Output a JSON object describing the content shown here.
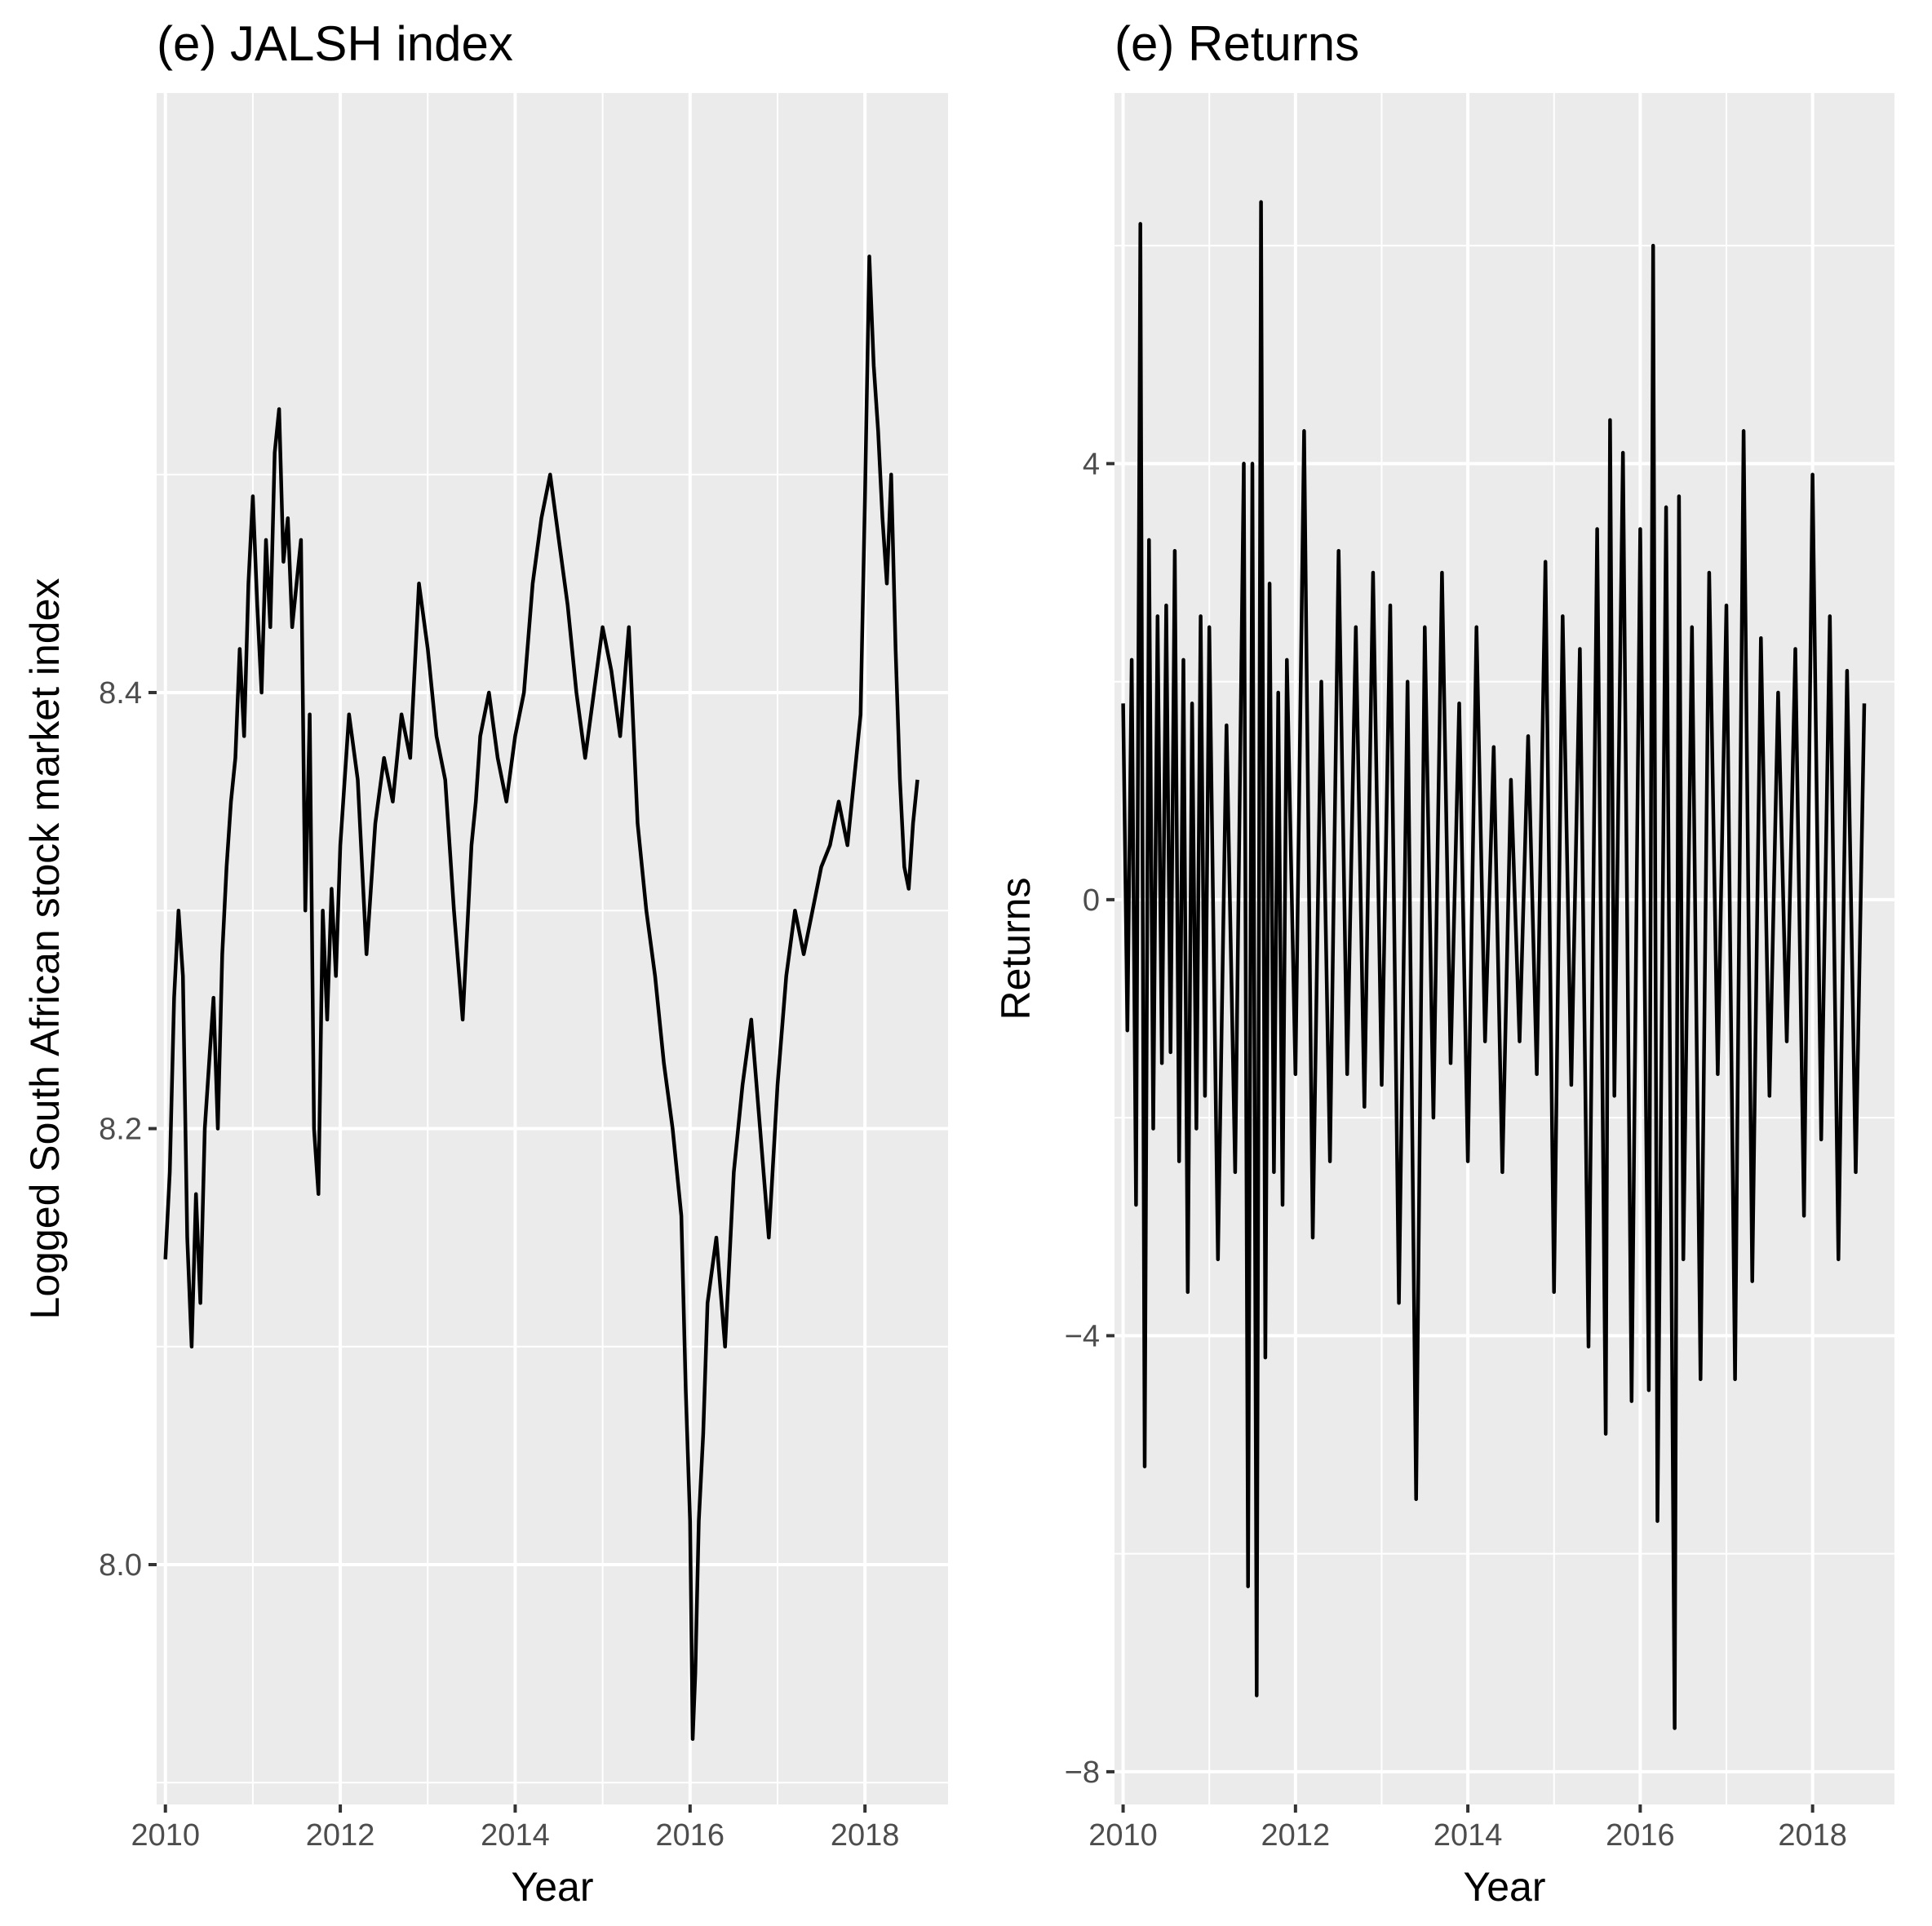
{
  "chart_data": [
    {
      "type": "line",
      "title": "(e) JALSH index",
      "xlabel": "Year",
      "ylabel": "Logged South African stock market index",
      "xlim": [
        2009.9,
        2018.95
      ],
      "ylim": [
        7.89,
        8.675
      ],
      "x_ticks": [
        2010,
        2012,
        2014,
        2016,
        2018
      ],
      "x_tick_labels": [
        "2010",
        "2012",
        "2014",
        "2016",
        "2018"
      ],
      "y_ticks": [
        8.0,
        8.2,
        8.4
      ],
      "y_tick_labels": [
        "8.0",
        "8.2",
        "8.4"
      ],
      "grid": true,
      "legend": "none",
      "series": [
        {
          "x": [
            2010.0,
            2010.05,
            2010.1,
            2010.15,
            2010.2,
            2010.25,
            2010.3,
            2010.35,
            2010.4,
            2010.45,
            2010.5,
            2010.55,
            2010.6,
            2010.65,
            2010.7,
            2010.75,
            2010.8,
            2010.85,
            2010.9,
            2010.95,
            2011.0,
            2011.05,
            2011.1,
            2011.15,
            2011.2,
            2011.25,
            2011.3,
            2011.35,
            2011.4,
            2011.45,
            2011.5,
            2011.55,
            2011.6,
            2011.65,
            2011.7,
            2011.75,
            2011.8,
            2011.85,
            2011.9,
            2011.95,
            2012.0,
            2012.1,
            2012.2,
            2012.3,
            2012.4,
            2012.5,
            2012.6,
            2012.7,
            2012.8,
            2012.9,
            2013.0,
            2013.1,
            2013.2,
            2013.3,
            2013.4,
            2013.5,
            2013.55,
            2013.6,
            2013.7,
            2013.8,
            2013.9,
            2014.0,
            2014.1,
            2014.2,
            2014.3,
            2014.4,
            2014.5,
            2014.6,
            2014.7,
            2014.8,
            2014.9,
            2015.0,
            2015.1,
            2015.2,
            2015.3,
            2015.4,
            2015.5,
            2015.6,
            2015.7,
            2015.8,
            2015.9,
            2015.95,
            2016.0,
            2016.03,
            2016.06,
            2016.1,
            2016.15,
            2016.2,
            2016.3,
            2016.4,
            2016.5,
            2016.6,
            2016.7,
            2016.8,
            2016.9,
            2017.0,
            2017.1,
            2017.2,
            2017.3,
            2017.4,
            2017.5,
            2017.6,
            2017.7,
            2017.8,
            2017.9,
            2017.95,
            2018.0,
            2018.05,
            2018.1,
            2018.15,
            2018.2,
            2018.25,
            2018.3,
            2018.35,
            2018.4,
            2018.45,
            2018.5,
            2018.55,
            2018.6
          ],
          "y": [
            8.14,
            8.18,
            8.26,
            8.3,
            8.27,
            8.15,
            8.1,
            8.17,
            8.12,
            8.2,
            8.23,
            8.26,
            8.2,
            8.28,
            8.32,
            8.35,
            8.37,
            8.42,
            8.38,
            8.45,
            8.49,
            8.44,
            8.4,
            8.47,
            8.43,
            8.51,
            8.53,
            8.46,
            8.48,
            8.43,
            8.45,
            8.47,
            8.3,
            8.39,
            8.2,
            8.17,
            8.3,
            8.25,
            8.31,
            8.27,
            8.33,
            8.39,
            8.36,
            8.28,
            8.34,
            8.37,
            8.35,
            8.39,
            8.37,
            8.45,
            8.42,
            8.38,
            8.36,
            8.3,
            8.25,
            8.33,
            8.35,
            8.38,
            8.4,
            8.37,
            8.35,
            8.38,
            8.4,
            8.45,
            8.48,
            8.5,
            8.47,
            8.44,
            8.4,
            8.37,
            8.4,
            8.43,
            8.41,
            8.38,
            8.43,
            8.34,
            8.3,
            8.27,
            8.23,
            8.2,
            8.16,
            8.08,
            8.02,
            7.92,
            7.95,
            8.02,
            8.06,
            8.12,
            8.15,
            8.1,
            8.18,
            8.22,
            8.25,
            8.2,
            8.15,
            8.22,
            8.27,
            8.3,
            8.28,
            8.3,
            8.32,
            8.33,
            8.35,
            8.33,
            8.37,
            8.39,
            8.49,
            8.6,
            8.55,
            8.52,
            8.48,
            8.45,
            8.5,
            8.42,
            8.36,
            8.32,
            8.31,
            8.34,
            8.36
          ]
        }
      ]
    },
    {
      "type": "line",
      "title": "(e) Returns",
      "xlabel": "Year",
      "ylabel": "Returns",
      "xlim": [
        2009.9,
        2018.95
      ],
      "ylim": [
        -8.3,
        7.4
      ],
      "x_ticks": [
        2010,
        2012,
        2014,
        2016,
        2018
      ],
      "x_tick_labels": [
        "2010",
        "2012",
        "2014",
        "2016",
        "2018"
      ],
      "y_ticks": [
        -8,
        -4,
        0,
        4
      ],
      "y_tick_labels": [
        "-8",
        "-4",
        "0",
        "4"
      ],
      "grid": true,
      "legend": "none",
      "series": [
        {
          "x": [
            2010.0,
            2010.05,
            2010.1,
            2010.15,
            2010.2,
            2010.25,
            2010.3,
            2010.35,
            2010.4,
            2010.45,
            2010.5,
            2010.55,
            2010.6,
            2010.65,
            2010.7,
            2010.75,
            2010.8,
            2010.85,
            2010.9,
            2010.95,
            2011.0,
            2011.1,
            2011.2,
            2011.3,
            2011.4,
            2011.45,
            2011.5,
            2011.55,
            2011.6,
            2011.65,
            2011.7,
            2011.75,
            2011.8,
            2011.85,
            2011.9,
            2012.0,
            2012.1,
            2012.2,
            2012.3,
            2012.4,
            2012.5,
            2012.6,
            2012.7,
            2012.8,
            2012.9,
            2013.0,
            2013.1,
            2013.2,
            2013.3,
            2013.4,
            2013.5,
            2013.6,
            2013.7,
            2013.8,
            2013.9,
            2014.0,
            2014.1,
            2014.2,
            2014.3,
            2014.4,
            2014.5,
            2014.6,
            2014.7,
            2014.8,
            2014.9,
            2015.0,
            2015.1,
            2015.2,
            2015.3,
            2015.4,
            2015.5,
            2015.6,
            2015.65,
            2015.7,
            2015.8,
            2015.9,
            2016.0,
            2016.1,
            2016.15,
            2016.2,
            2016.3,
            2016.4,
            2016.45,
            2016.5,
            2016.6,
            2016.7,
            2016.8,
            2016.9,
            2017.0,
            2017.1,
            2017.2,
            2017.3,
            2017.4,
            2017.5,
            2017.6,
            2017.7,
            2017.8,
            2017.9,
            2018.0,
            2018.1,
            2018.2,
            2018.3,
            2018.4,
            2018.5,
            2018.6
          ],
          "y": [
            1.8,
            -1.2,
            2.2,
            -2.8,
            6.2,
            -5.2,
            3.3,
            -2.1,
            2.6,
            -1.5,
            2.7,
            -1.4,
            3.2,
            -2.4,
            2.2,
            -3.6,
            1.8,
            -2.1,
            2.6,
            -1.8,
            2.5,
            -3.3,
            1.6,
            -2.5,
            4.0,
            -6.3,
            4.0,
            -7.3,
            6.4,
            -4.2,
            2.9,
            -2.5,
            1.9,
            -2.8,
            2.2,
            -1.6,
            4.3,
            -3.1,
            2.0,
            -2.4,
            3.2,
            -1.6,
            2.5,
            -1.9,
            3.0,
            -1.7,
            2.7,
            -3.7,
            2.0,
            -5.5,
            2.5,
            -2.0,
            3.0,
            -1.5,
            1.8,
            -2.4,
            2.5,
            -1.3,
            1.4,
            -2.5,
            1.1,
            -1.3,
            1.5,
            -1.6,
            3.1,
            -3.6,
            2.6,
            -1.7,
            2.3,
            -4.1,
            3.4,
            -4.9,
            4.4,
            -1.8,
            4.1,
            -4.6,
            3.4,
            -4.5,
            6.0,
            -5.7,
            3.6,
            -7.6,
            3.7,
            -3.3,
            2.5,
            -4.4,
            3.0,
            -1.6,
            2.7,
            -4.4,
            4.3,
            -3.5,
            2.4,
            -1.8,
            1.9,
            -1.3,
            2.3,
            -2.9,
            3.9,
            -2.2,
            2.6,
            -3.3,
            2.1,
            -2.5,
            1.8
          ]
        }
      ]
    }
  ]
}
